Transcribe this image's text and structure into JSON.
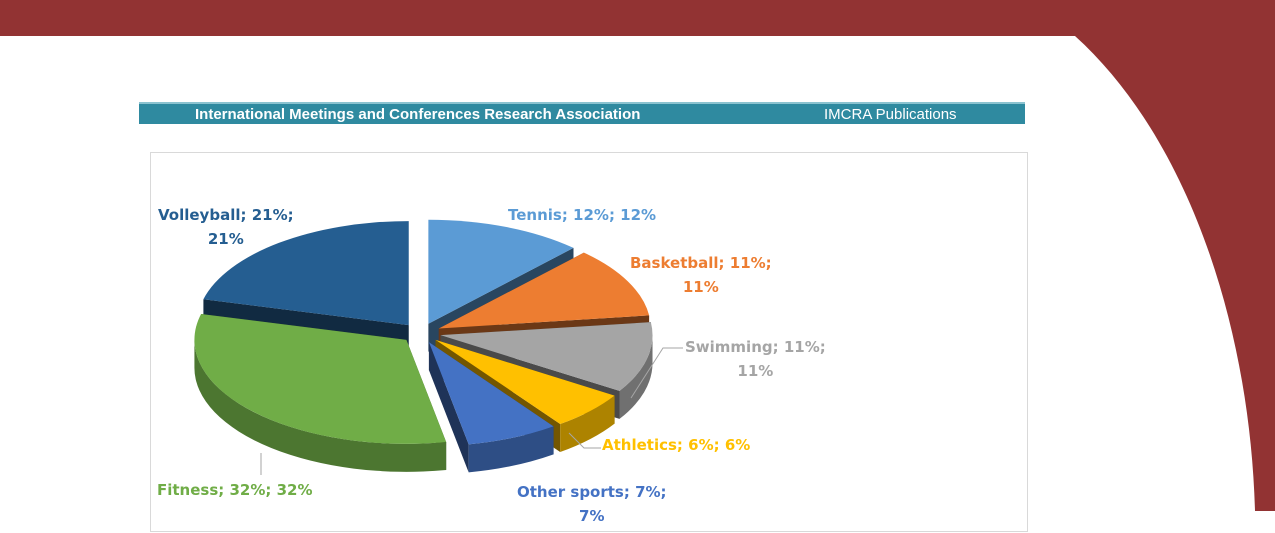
{
  "header": {
    "org_name": "International Meetings and Conferences Research Association",
    "publications": "IMCRA Publications"
  },
  "colors": {
    "maroon": "#923333",
    "banner": "#2f8aa0"
  },
  "chart_data": {
    "type": "pie",
    "style": "3d-exploded",
    "categories": [
      "Tennis",
      "Basketball",
      "Swimming",
      "Athletics",
      "Other sports",
      "Fitness",
      "Volleyball"
    ],
    "values": [
      12,
      11,
      11,
      6,
      7,
      32,
      21
    ],
    "unit": "%",
    "colors": [
      "#5b9bd5",
      "#ed7d31",
      "#a5a5a5",
      "#ffc000",
      "#4472c4",
      "#70ad47",
      "#255e91"
    ],
    "data_labels": [
      {
        "line1": "Tennis; 12%; 12%",
        "line2": ""
      },
      {
        "line1": "Basketball; 11%;",
        "line2": "11%"
      },
      {
        "line1": "Swimming; 11%;",
        "line2": "11%"
      },
      {
        "line1": "Athletics; 6%; 6%",
        "line2": ""
      },
      {
        "line1": "Other sports; 7%;",
        "line2": "7%"
      },
      {
        "line1": "Fitness; 32%; 32%",
        "line2": ""
      },
      {
        "line1": "Volleyball; 21%;",
        "line2": "21%"
      }
    ]
  }
}
